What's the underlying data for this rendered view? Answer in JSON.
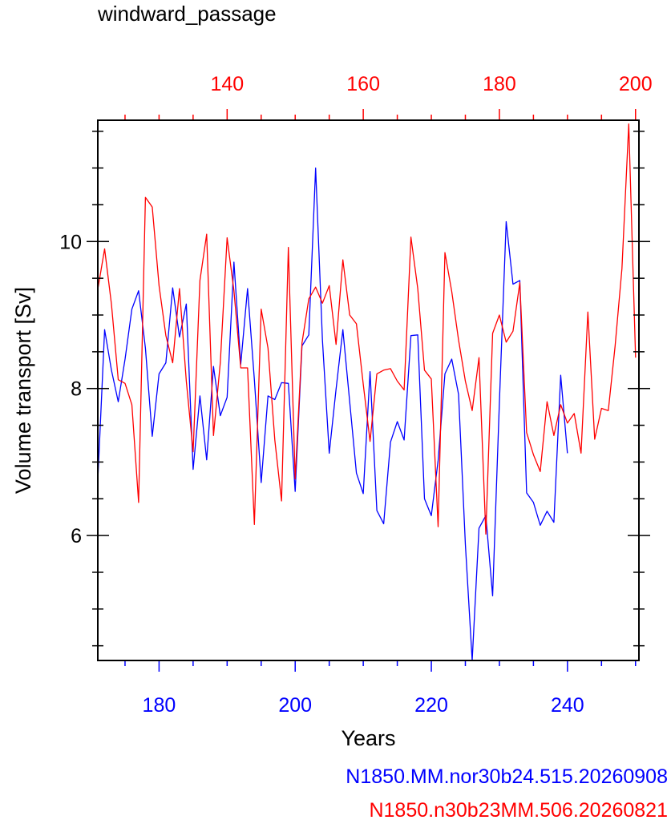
{
  "chart_data": {
    "type": "line",
    "title": "windward_passage",
    "xlabel": "Years",
    "ylabel": "Volume transport [Sv]",
    "ylim": [
      4.3,
      11.65
    ],
    "yticks": [
      6,
      8,
      10
    ],
    "x_bottom": {
      "range": [
        171,
        250.5
      ],
      "ticks": [
        180,
        200,
        220,
        240
      ],
      "color": "#0000ff"
    },
    "x_top": {
      "range": [
        121,
        200.5
      ],
      "ticks": [
        140,
        160,
        180,
        200
      ],
      "color": "#ff0000"
    },
    "series": [
      {
        "name": "N1850.MM.nor30b24.515.20260908",
        "color": "#0000ff",
        "axis": "bottom",
        "x0": 171,
        "values": [
          6.75,
          8.8,
          8.25,
          7.82,
          8.4,
          9.08,
          9.33,
          8.55,
          7.35,
          8.2,
          8.35,
          9.37,
          8.7,
          9.15,
          6.9,
          7.9,
          7.03,
          8.3,
          7.63,
          7.88,
          9.72,
          8.33,
          9.36,
          8.12,
          6.72,
          7.9,
          7.85,
          8.08,
          8.07,
          6.6,
          8.58,
          8.73,
          11.0,
          8.66,
          7.12,
          7.99,
          8.8,
          7.82,
          6.85,
          6.57,
          8.23,
          6.34,
          6.16,
          7.27,
          7.55,
          7.3,
          8.72,
          8.73,
          6.5,
          6.27,
          7.02,
          8.2,
          8.4,
          7.92,
          5.88,
          4.3,
          6.1,
          6.27,
          5.18,
          7.8,
          10.27,
          9.42,
          9.47,
          6.58,
          6.45,
          6.14,
          6.33,
          6.18,
          8.18,
          7.12
        ]
      },
      {
        "name": "N1850.n30b23MM.506.20260821",
        "color": "#ff0000",
        "axis": "top",
        "x0": 121,
        "values": [
          9.35,
          9.9,
          9.15,
          8.12,
          8.07,
          7.78,
          6.45,
          10.6,
          10.47,
          9.4,
          8.72,
          8.35,
          9.36,
          8.1,
          7.14,
          9.47,
          10.1,
          7.36,
          8.35,
          10.05,
          9.33,
          8.28,
          8.28,
          6.15,
          9.08,
          8.55,
          7.3,
          6.47,
          9.92,
          6.77,
          8.62,
          9.22,
          9.38,
          9.16,
          9.4,
          8.6,
          9.75,
          9.0,
          8.88,
          8.06,
          7.28,
          8.2,
          8.25,
          8.27,
          8.1,
          7.98,
          10.06,
          9.36,
          8.25,
          8.13,
          6.12,
          9.85,
          9.32,
          8.66,
          8.1,
          7.7,
          8.42,
          6.02,
          8.75,
          9.0,
          8.63,
          8.78,
          9.44,
          7.4,
          7.1,
          6.87,
          7.82,
          7.36,
          7.78,
          7.53,
          7.66,
          7.12,
          9.04,
          7.31,
          7.73,
          7.7,
          8.58,
          9.63,
          11.6,
          8.42
        ]
      }
    ]
  }
}
